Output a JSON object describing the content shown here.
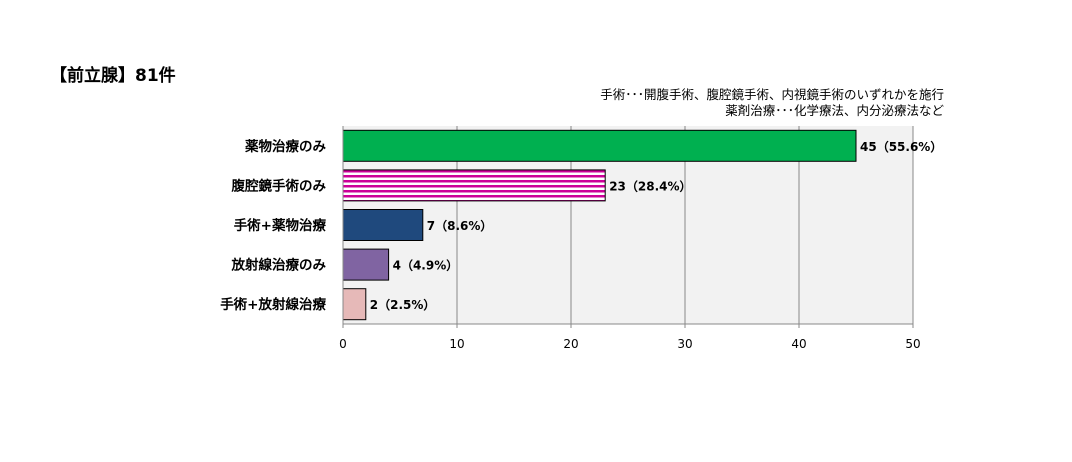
{
  "title": "【前立腺】81件",
  "notes": [
    "手術･･･開腹手術、腹腔鏡手術、内視鏡手術のいずれかを施行",
    "薬剤治療･･･化学療法、内分泌療法など"
  ],
  "colors": {
    "plot_background": "#f2f2f2",
    "gridline": "#888888",
    "bar_border": "#000000",
    "stripe_magenta": "#cc0099"
  },
  "chart_data": {
    "type": "bar",
    "orientation": "horizontal",
    "categories": [
      "薬物治療のみ",
      "腹腔鏡手術のみ",
      "手術+薬物治療",
      "放射線治療のみ",
      "手術+放射線治療"
    ],
    "values": [
      45,
      23,
      7,
      4,
      2
    ],
    "data_labels": [
      "45（55.6%）",
      "23（28.4%）",
      "7（8.6%）",
      "4（4.9%）",
      "2（2.5%）"
    ],
    "bar_colors": [
      "#00b050",
      "striped-magenta",
      "#1f497d",
      "#8064a2",
      "#e6b9b8"
    ],
    "xlim": [
      0,
      50
    ],
    "xticks": [
      0,
      10,
      20,
      30,
      40,
      50
    ],
    "grid": true,
    "legend": "none"
  }
}
